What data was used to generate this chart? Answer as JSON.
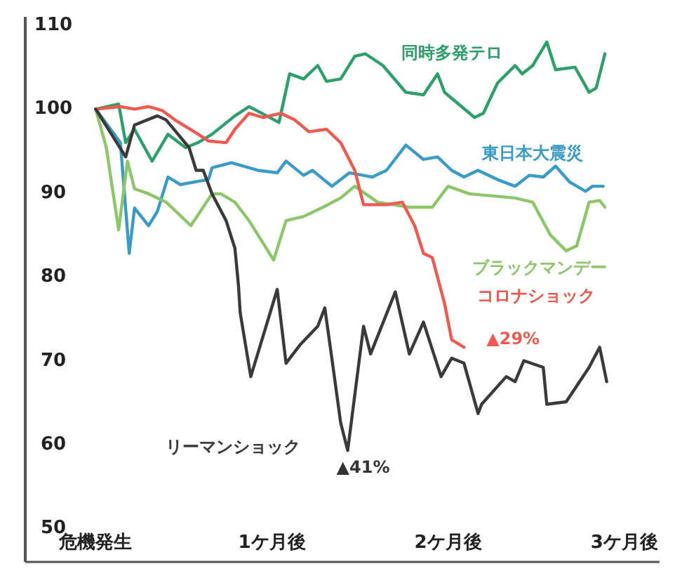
{
  "chart_data": {
    "type": "line",
    "xlim": [
      -0.4,
      3.2
    ],
    "ylim": [
      46,
      111
    ],
    "xticks": [
      {
        "value": 0,
        "label": "危機発生"
      },
      {
        "value": 1,
        "label": "1ケ月後"
      },
      {
        "value": 2,
        "label": "2ケ月後"
      },
      {
        "value": 3,
        "label": "3ケ月後"
      }
    ],
    "yticks": [
      50,
      60,
      70,
      80,
      90,
      100,
      110
    ],
    "grid": false,
    "legend": false,
    "marker": "none",
    "line_style": "solid",
    "series": [
      {
        "name": "同時多発テロ",
        "color": "#2e9e6a",
        "x": [
          0,
          0.13,
          0.17,
          0.22,
          0.32,
          0.41,
          0.51,
          0.58,
          0.66,
          0.79,
          0.87,
          0.97,
          1.04,
          1.1,
          1.18,
          1.26,
          1.31,
          1.39,
          1.47,
          1.53,
          1.63,
          1.76,
          1.86,
          1.94,
          1.98,
          2.15,
          2.2,
          2.28,
          2.38,
          2.42,
          2.48,
          2.56,
          2.61,
          2.72,
          2.8,
          2.84,
          2.89
        ],
        "values": [
          100,
          100.6,
          96,
          97.6,
          93.8,
          97,
          95.4,
          96,
          97,
          99.2,
          100.3,
          99.2,
          98.4,
          104.2,
          103.6,
          105.2,
          103.3,
          103.6,
          106.3,
          106.6,
          105.2,
          102,
          101.7,
          104.2,
          102,
          99,
          99.5,
          103.1,
          105.2,
          104.2,
          105.2,
          108,
          104.7,
          105,
          102,
          102.5,
          106.6
        ]
      },
      {
        "name": "東日本大震災",
        "color": "#3a9bc6",
        "x": [
          0,
          0.14,
          0.19,
          0.22,
          0.3,
          0.35,
          0.41,
          0.48,
          0.56,
          0.64,
          0.66,
          0.77,
          0.92,
          1.03,
          1.08,
          1.18,
          1.23,
          1.34,
          1.44,
          1.57,
          1.65,
          1.76,
          1.86,
          1.94,
          2.02,
          2.09,
          2.17,
          2.28,
          2.38,
          2.46,
          2.54,
          2.61,
          2.69,
          2.78,
          2.82,
          2.88
        ],
        "values": [
          100,
          96,
          82.8,
          88.2,
          86.1,
          87.8,
          91.9,
          91,
          91.3,
          91.6,
          93,
          93.6,
          92.7,
          92.4,
          93.8,
          92.1,
          92.7,
          90.8,
          92.4,
          91.9,
          92.7,
          95.7,
          94,
          94.3,
          92.7,
          91.9,
          92.7,
          91.6,
          90.8,
          92.1,
          91.9,
          93.2,
          91.3,
          90.2,
          90.8,
          90.8
        ]
      },
      {
        "name": "ブラックマンデー",
        "color": "#8cc56a",
        "x": [
          0,
          0.06,
          0.13,
          0.18,
          0.22,
          0.3,
          0.4,
          0.54,
          0.66,
          0.71,
          0.79,
          0.87,
          1.01,
          1.08,
          1.18,
          1.29,
          1.39,
          1.47,
          1.6,
          1.78,
          1.91,
          2.0,
          2.12,
          2.38,
          2.48,
          2.58,
          2.67,
          2.73,
          2.8,
          2.86,
          2.89
        ],
        "values": [
          100,
          95.4,
          85.6,
          93.8,
          90.5,
          89.9,
          88.9,
          86.1,
          89.9,
          89.9,
          88.9,
          86.7,
          82,
          86.7,
          87.2,
          88.3,
          89.4,
          90.8,
          88.9,
          88.3,
          88.3,
          90.8,
          89.9,
          89.4,
          88.9,
          85,
          83.1,
          83.7,
          88.9,
          89.1,
          88.3
        ]
      },
      {
        "name": "コロナショック",
        "color": "#ec5a50",
        "x": [
          0,
          0.14,
          0.22,
          0.3,
          0.38,
          0.45,
          0.56,
          0.64,
          0.74,
          0.79,
          0.87,
          0.95,
          1.05,
          1.13,
          1.21,
          1.31,
          1.39,
          1.47,
          1.52,
          1.65,
          1.74,
          1.81,
          1.86,
          1.91,
          1.98,
          2.02,
          2.09
        ],
        "values": [
          100,
          100.3,
          100,
          100.3,
          99.8,
          98.7,
          97.3,
          96.2,
          96,
          97.6,
          99.5,
          99,
          99.5,
          98.7,
          97.3,
          97.6,
          96,
          92.7,
          88.6,
          88.6,
          88.9,
          86.1,
          82.8,
          82.3,
          76.8,
          72.5,
          71.6
        ]
      },
      {
        "name": "リーマンショック",
        "color": "#3a3a3a",
        "x": [
          0,
          0.17,
          0.22,
          0.35,
          0.4,
          0.53,
          0.57,
          0.61,
          0.66,
          0.74,
          0.79,
          0.81,
          0.82,
          0.88,
          1.03,
          1.08,
          1.16,
          1.26,
          1.3,
          1.34,
          1.39,
          1.43,
          1.52,
          1.56,
          1.7,
          1.78,
          1.86,
          1.96,
          2.02,
          2.09,
          2.17,
          2.19,
          2.33,
          2.38,
          2.43,
          2.54,
          2.56,
          2.67,
          2.8,
          2.86,
          2.9
        ],
        "values": [
          100,
          94.3,
          98.1,
          99.2,
          98.7,
          95.4,
          92.7,
          92.7,
          89.9,
          86.7,
          83.4,
          79,
          75.7,
          68.1,
          78.5,
          69.7,
          71.9,
          74.1,
          76.3,
          70.3,
          62.6,
          59.3,
          74.1,
          70.8,
          78.2,
          70.8,
          74.6,
          68.1,
          70.3,
          69.7,
          63.7,
          64.8,
          68.1,
          67.5,
          70,
          69.2,
          64.8,
          65.1,
          69.2,
          71.6,
          67.5
        ]
      }
    ],
    "annotations": [
      {
        "text": "▲29%",
        "x": 2.09,
        "y": 71.6
      },
      {
        "text": "▲41%",
        "x": 1.43,
        "y": 59.3
      }
    ]
  }
}
